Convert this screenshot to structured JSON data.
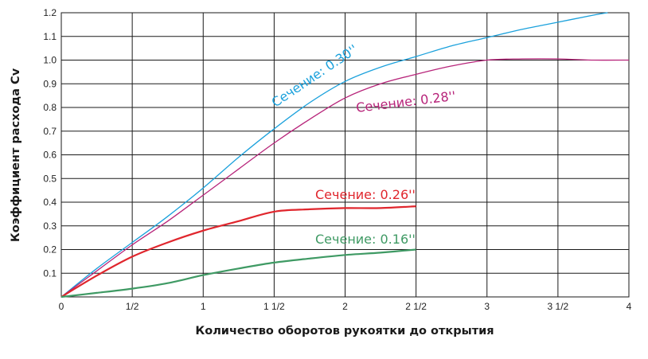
{
  "chart_data": {
    "type": "line",
    "title": "",
    "xlabel": "Количество оборотов рукоятки до открытия",
    "ylabel": "Коэффициент расхода Cv",
    "xlim": [
      0,
      4
    ],
    "ylim": [
      0,
      1.2
    ],
    "grid": true,
    "legend": "none",
    "x_ticks": [
      {
        "value": 0,
        "label": "0"
      },
      {
        "value": 0.5,
        "label": "1/2"
      },
      {
        "value": 1,
        "label": "1"
      },
      {
        "value": 1.5,
        "label": "1 1/2"
      },
      {
        "value": 2,
        "label": "2"
      },
      {
        "value": 2.5,
        "label": "2 1/2"
      },
      {
        "value": 3,
        "label": "3"
      },
      {
        "value": 3.5,
        "label": "3 1/2"
      },
      {
        "value": 4,
        "label": "4"
      }
    ],
    "y_ticks": [
      {
        "value": 0.1,
        "label": "0.1"
      },
      {
        "value": 0.2,
        "label": "0.2"
      },
      {
        "value": 0.3,
        "label": "0.3"
      },
      {
        "value": 0.4,
        "label": "0.4"
      },
      {
        "value": 0.5,
        "label": "0.5"
      },
      {
        "value": 0.6,
        "label": "0.6"
      },
      {
        "value": 0.7,
        "label": "0.7"
      },
      {
        "value": 0.8,
        "label": "0.8"
      },
      {
        "value": 0.9,
        "label": "0.9"
      },
      {
        "value": 1.0,
        "label": "1.0"
      },
      {
        "value": 1.1,
        "label": "1.1"
      },
      {
        "value": 1.2,
        "label": "1.2"
      }
    ],
    "series": [
      {
        "name": "Сечение: 0.30''",
        "color": "#1ba1dc",
        "width": 1.3,
        "x": [
          0,
          0.25,
          0.5,
          0.75,
          1.0,
          1.25,
          1.5,
          1.75,
          2.0,
          2.25,
          2.5,
          2.75,
          3.0,
          3.25,
          3.5,
          3.75,
          3.85
        ],
        "y": [
          0,
          0.12,
          0.23,
          0.34,
          0.46,
          0.59,
          0.71,
          0.82,
          0.91,
          0.97,
          1.015,
          1.06,
          1.095,
          1.13,
          1.16,
          1.19,
          1.2
        ]
      },
      {
        "name": "Сечение: 0.28''",
        "color": "#b7247a",
        "width": 1.3,
        "x": [
          0,
          0.25,
          0.5,
          0.75,
          1.0,
          1.25,
          1.5,
          1.75,
          2.0,
          2.25,
          2.5,
          2.75,
          3.0,
          3.25,
          3.5,
          3.75,
          4.0
        ],
        "y": [
          0,
          0.11,
          0.22,
          0.32,
          0.43,
          0.54,
          0.65,
          0.75,
          0.84,
          0.9,
          0.94,
          0.975,
          1.0,
          1.005,
          1.005,
          1.0,
          1.0
        ]
      },
      {
        "name": "Сечение: 0.26''",
        "color": "#e0262d",
        "width": 2.2,
        "x": [
          0,
          0.25,
          0.5,
          0.75,
          1.0,
          1.25,
          1.5,
          1.75,
          2.0,
          2.25,
          2.5
        ],
        "y": [
          0,
          0.09,
          0.17,
          0.23,
          0.28,
          0.32,
          0.36,
          0.37,
          0.375,
          0.375,
          0.383
        ]
      },
      {
        "name": "Сечение: 0.16''",
        "color": "#3f9a64",
        "width": 2.2,
        "x": [
          0,
          0.25,
          0.5,
          0.75,
          1.0,
          1.25,
          1.5,
          1.75,
          2.0,
          2.25,
          2.5
        ],
        "y": [
          0,
          0.017,
          0.035,
          0.058,
          0.092,
          0.12,
          0.145,
          0.162,
          0.177,
          0.187,
          0.2
        ]
      }
    ],
    "annotations": [
      {
        "series": 0,
        "text": "Сечение: 0.30''"
      },
      {
        "series": 1,
        "text": "Сечение: 0.28''"
      },
      {
        "series": 2,
        "text": "Сечение: 0.26''"
      },
      {
        "series": 3,
        "text": "Сечение: 0.16''"
      }
    ]
  }
}
